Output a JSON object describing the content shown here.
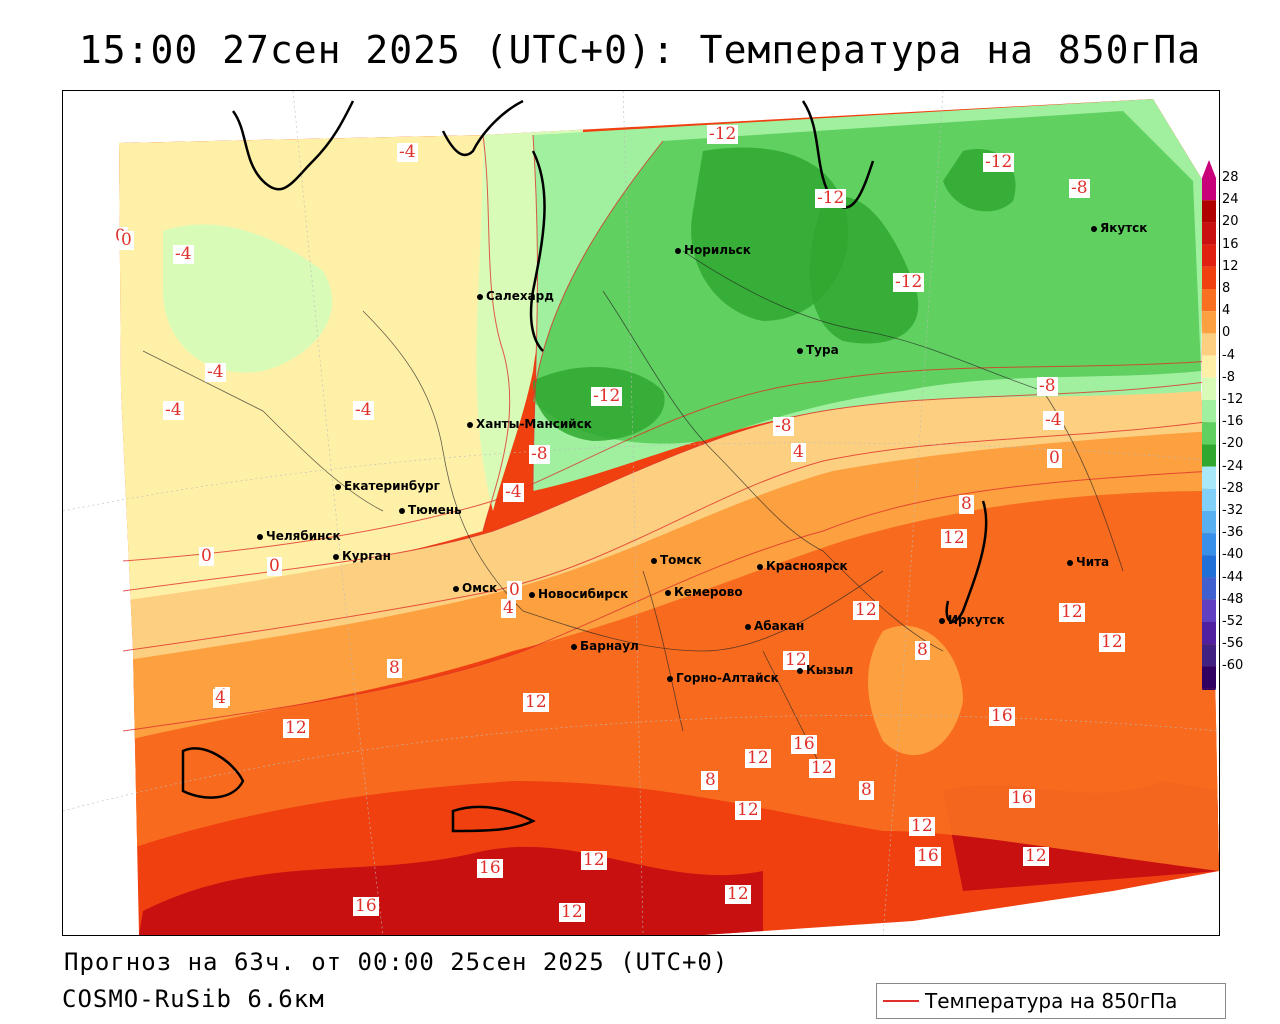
{
  "title": "15:00 27сен 2025 (UTC+0): Температура на 850гПа",
  "footer": {
    "forecast": "Прогноз на 63ч. от 00:00 25сен 2025 (UTC+0)",
    "model": "COSMO-RuSib 6.6км"
  },
  "legend": {
    "label": "Температура на 850гПа",
    "color": "#e0302a"
  },
  "colorbar": {
    "ticks": [
      "28",
      "24",
      "20",
      "16",
      "12",
      "8",
      "4",
      "0",
      "-4",
      "-8",
      "-12",
      "-16",
      "-20",
      "-24",
      "-28",
      "-32",
      "-36",
      "-40",
      "-44",
      "-48",
      "-52",
      "-56",
      "-60"
    ],
    "colors": [
      "#c8007a",
      "#b00000",
      "#c81010",
      "#e02010",
      "#f04010",
      "#f87020",
      "#fca040",
      "#fcd080",
      "#fff0a8",
      "#d8fcb8",
      "#a0f0a0",
      "#60d060",
      "#30a830",
      "#a8e8f8",
      "#80d0f8",
      "#58b0f0",
      "#3890e8",
      "#2070d8",
      "#4060d0",
      "#6040c0",
      "#5020a0",
      "#402080",
      "#300060"
    ]
  },
  "cities": [
    {
      "name": "Норильск"
    },
    {
      "name": "Якутск"
    },
    {
      "name": "Салехард"
    },
    {
      "name": "Тура"
    },
    {
      "name": "Ханты-Мансийск"
    },
    {
      "name": "Екатеринбург"
    },
    {
      "name": "Тюмень"
    },
    {
      "name": "Челябинск"
    },
    {
      "name": "Курган"
    },
    {
      "name": "Омск"
    },
    {
      "name": "Томск"
    },
    {
      "name": "Красноярск"
    },
    {
      "name": "Новосибирск"
    },
    {
      "name": "Кемерово"
    },
    {
      "name": "Абакан"
    },
    {
      "name": "Барнаул"
    },
    {
      "name": "Горно-Алтайск"
    },
    {
      "name": "Кызыл"
    },
    {
      "name": "Иркутск"
    },
    {
      "name": "Чита"
    }
  ],
  "isotherm_labels": [
    "-12",
    "-12",
    "-12",
    "-12",
    "-8",
    "-4",
    "-4",
    "-4",
    "-4",
    "-4",
    "-12",
    "-8",
    "-8",
    "-8",
    "-4",
    "0",
    "0",
    "-4",
    "0",
    "4",
    "4",
    "8",
    "0",
    "4",
    "12",
    "12",
    "12",
    "12",
    "8",
    "12",
    "8",
    "12",
    "12",
    "16",
    "16",
    "12",
    "12",
    "8",
    "8",
    "16",
    "12",
    "16",
    "12",
    "12",
    "16",
    "12",
    "12",
    "16",
    "4",
    "12",
    "8",
    "0",
    "0"
  ]
}
